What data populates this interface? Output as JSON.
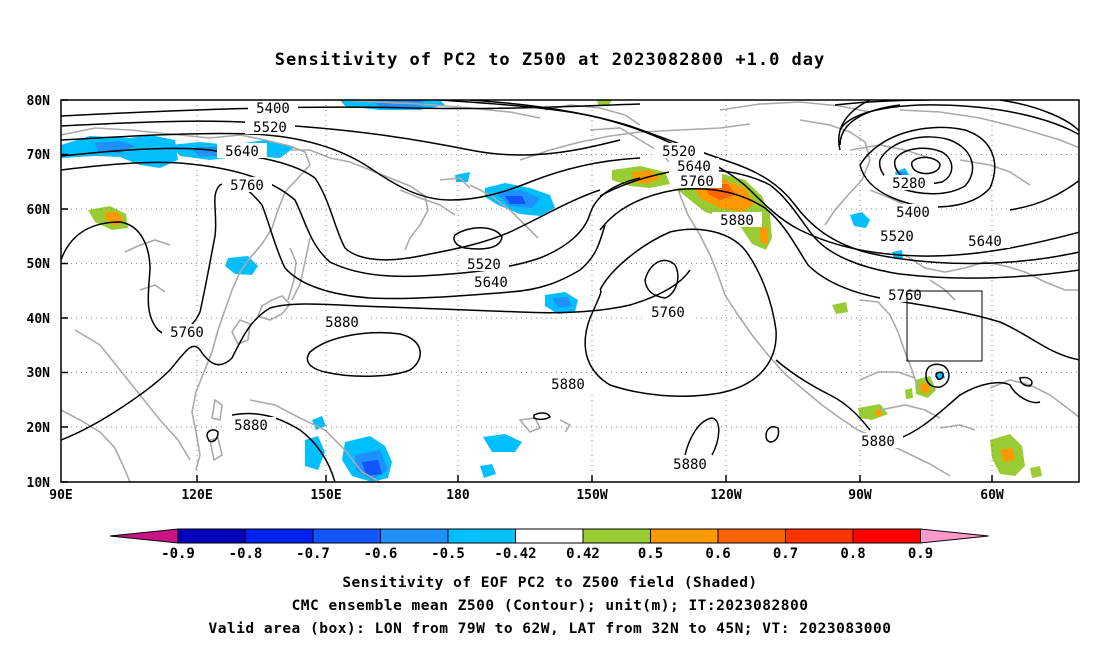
{
  "title": "Sensitivity of PC2 to Z500 at 2023082800 +1.0 day",
  "map": {
    "lat_labels": [
      "80N",
      "70N",
      "60N",
      "50N",
      "40N",
      "30N",
      "20N",
      "10N"
    ],
    "lon_labels": [
      "90E",
      "120E",
      "150E",
      "180",
      "150W",
      "120W",
      "90W",
      "60W"
    ],
    "contour_labels": [
      {
        "text": "5400"
      },
      {
        "text": "5520"
      },
      {
        "text": "5640"
      },
      {
        "text": "5760"
      },
      {
        "text": "5520"
      },
      {
        "text": "5640"
      },
      {
        "text": "5760"
      },
      {
        "text": "5880"
      },
      {
        "text": "5280"
      },
      {
        "text": "5400"
      },
      {
        "text": "5520"
      },
      {
        "text": "5640"
      },
      {
        "text": "5520"
      },
      {
        "text": "5640"
      },
      {
        "text": "5760"
      },
      {
        "text": "5880"
      },
      {
        "text": "5760"
      },
      {
        "text": "5880"
      },
      {
        "text": "5880"
      },
      {
        "text": "5880"
      },
      {
        "text": "5760"
      },
      {
        "text": "5880"
      }
    ],
    "valid_box": {
      "lon_from": "79W",
      "lon_to": "62W",
      "lat_from": "32N",
      "lat_to": "45N"
    }
  },
  "colorbar": {
    "labels": [
      "-0.9",
      "-0.8",
      "-0.7",
      "-0.6",
      "-0.5",
      "-0.42",
      "0.42",
      "0.5",
      "0.6",
      "0.7",
      "0.8",
      "0.9"
    ],
    "colors": [
      "#c71585",
      "#0000bb",
      "#0022ee",
      "#1155ff",
      "#1e90ff",
      "#00bfff",
      "#ffffff",
      "#99cc33",
      "#ff9900",
      "#ff6600",
      "#ff3300",
      "#ff0000",
      "#ff99cc"
    ]
  },
  "captions": {
    "line1": "Sensitivity of EOF PC2 to Z500 field (Shaded)",
    "line2": "CMC ensemble mean Z500 (Contour); unit(m); IT:2023082800",
    "line3": "Valid area (box): LON from 79W to 62W, LAT from 32N to 45N; VT: 2023083000"
  }
}
